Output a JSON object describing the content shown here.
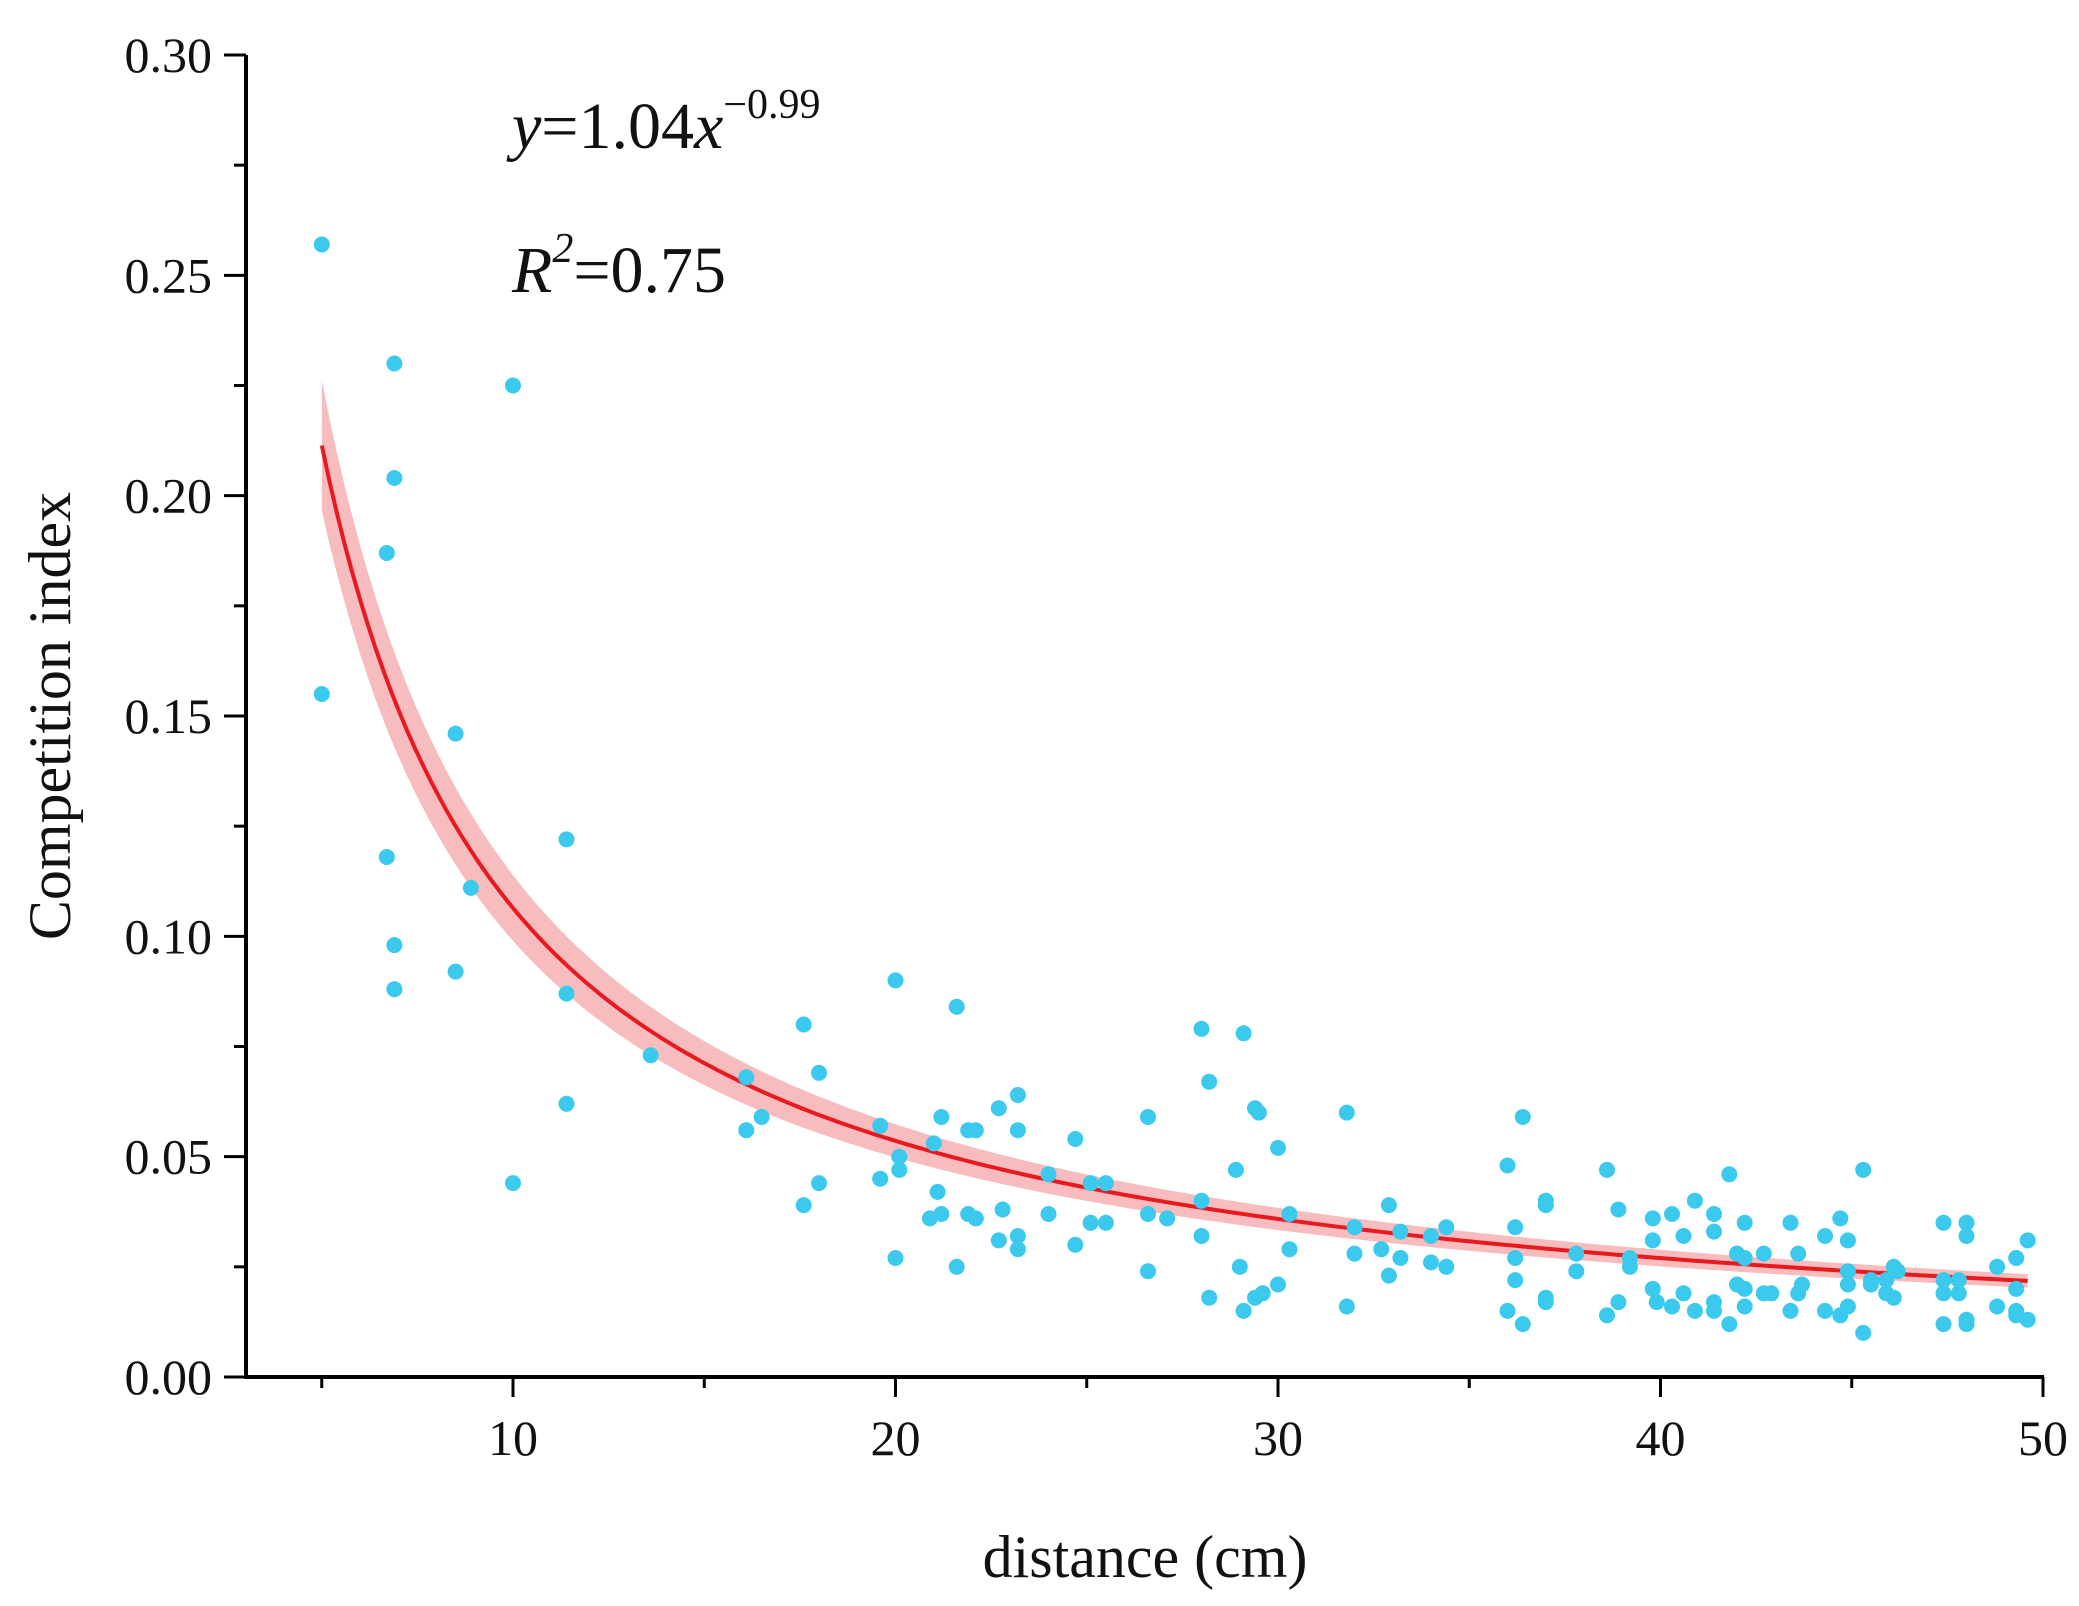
{
  "chart_data": {
    "type": "scatter",
    "title": "",
    "xlabel": "distance (cm)",
    "ylabel": "Competition index",
    "xlim": [
      3,
      50
    ],
    "ylim": [
      0,
      0.3
    ],
    "x_ticks": [
      10,
      20,
      30,
      40,
      50
    ],
    "x_tick_labels": [
      "10",
      "20",
      "30",
      "40",
      "50"
    ],
    "y_ticks": [
      0,
      0.05,
      0.1,
      0.15,
      0.2,
      0.25,
      0.3
    ],
    "y_tick_labels": [
      "0.00",
      "0.05",
      "0.10",
      "0.15",
      "0.20",
      "0.25",
      "0.30"
    ],
    "grid": false,
    "annotations": {
      "eq_y": "y",
      "eq_mid": "=1.04",
      "eq_x": "x",
      "eq_exp": "−0.99",
      "r2_r": "R",
      "r2_sup": "2",
      "r2_val": "=0.75"
    },
    "fit": {
      "type": "power",
      "a": 1.04,
      "b": -0.99,
      "x_range": [
        5,
        49.6
      ],
      "band_halfwidth_fraction": 0.07,
      "line_color": "#e8191f",
      "band_color": "#f4a5a8"
    },
    "point_color": "#3cc9ee",
    "points": [
      [
        5,
        0.257
      ],
      [
        5,
        0.155
      ],
      [
        6.7,
        0.187
      ],
      [
        6.7,
        0.118
      ],
      [
        6.9,
        0.23
      ],
      [
        6.9,
        0.204
      ],
      [
        6.9,
        0.098
      ],
      [
        6.9,
        0.088
      ],
      [
        8.5,
        0.146
      ],
      [
        8.5,
        0.092
      ],
      [
        8.9,
        0.111
      ],
      [
        10,
        0.225
      ],
      [
        10,
        0.044
      ],
      [
        11.4,
        0.122
      ],
      [
        11.4,
        0.087
      ],
      [
        11.4,
        0.062
      ],
      [
        13.6,
        0.073
      ],
      [
        16.1,
        0.068
      ],
      [
        16.1,
        0.056
      ],
      [
        16.5,
        0.059
      ],
      [
        17.6,
        0.08
      ],
      [
        17.6,
        0.039
      ],
      [
        18,
        0.069
      ],
      [
        18,
        0.044
      ],
      [
        19.6,
        0.057
      ],
      [
        19.6,
        0.045
      ],
      [
        20,
        0.09
      ],
      [
        20,
        0.027
      ],
      [
        20.1,
        0.05
      ],
      [
        20.1,
        0.047
      ],
      [
        20.9,
        0.036
      ],
      [
        21,
        0.053
      ],
      [
        21.1,
        0.042
      ],
      [
        21.2,
        0.059
      ],
      [
        21.2,
        0.037
      ],
      [
        21.6,
        0.084
      ],
      [
        21.6,
        0.025
      ],
      [
        21.9,
        0.056
      ],
      [
        21.9,
        0.037
      ],
      [
        22.1,
        0.056
      ],
      [
        22.1,
        0.036
      ],
      [
        22.7,
        0.061
      ],
      [
        22.7,
        0.031
      ],
      [
        22.8,
        0.038
      ],
      [
        23.2,
        0.064
      ],
      [
        23.2,
        0.056
      ],
      [
        23.2,
        0.032
      ],
      [
        23.2,
        0.029
      ],
      [
        24,
        0.046
      ],
      [
        24,
        0.037
      ],
      [
        24.7,
        0.054
      ],
      [
        24.7,
        0.03
      ],
      [
        25.1,
        0.044
      ],
      [
        25.1,
        0.035
      ],
      [
        25.5,
        0.044
      ],
      [
        25.5,
        0.035
      ],
      [
        26.6,
        0.059
      ],
      [
        26.6,
        0.037
      ],
      [
        26.6,
        0.024
      ],
      [
        27.1,
        0.036
      ],
      [
        28,
        0.079
      ],
      [
        28,
        0.04
      ],
      [
        28,
        0.032
      ],
      [
        28.2,
        0.067
      ],
      [
        28.2,
        0.018
      ],
      [
        28.9,
        0.047
      ],
      [
        29,
        0.025
      ],
      [
        29.1,
        0.078
      ],
      [
        29.1,
        0.015
      ],
      [
        29.4,
        0.061
      ],
      [
        29.5,
        0.06
      ],
      [
        29.4,
        0.018
      ],
      [
        29.6,
        0.019
      ],
      [
        30,
        0.052
      ],
      [
        30,
        0.021
      ],
      [
        30.3,
        0.037
      ],
      [
        30.3,
        0.029
      ],
      [
        31.8,
        0.06
      ],
      [
        31.8,
        0.016
      ],
      [
        32,
        0.034
      ],
      [
        32,
        0.028
      ],
      [
        32.7,
        0.029
      ],
      [
        32.9,
        0.039
      ],
      [
        32.9,
        0.023
      ],
      [
        33.2,
        0.033
      ],
      [
        33.2,
        0.027
      ],
      [
        34,
        0.032
      ],
      [
        34,
        0.026
      ],
      [
        34.4,
        0.034
      ],
      [
        34.4,
        0.025
      ],
      [
        36,
        0.048
      ],
      [
        36,
        0.015
      ],
      [
        36.2,
        0.034
      ],
      [
        36.2,
        0.027
      ],
      [
        36.2,
        0.022
      ],
      [
        36.4,
        0.059
      ],
      [
        36.4,
        0.012
      ],
      [
        37,
        0.04
      ],
      [
        37,
        0.039
      ],
      [
        37,
        0.018
      ],
      [
        37,
        0.017
      ],
      [
        37.8,
        0.028
      ],
      [
        37.8,
        0.024
      ],
      [
        38.6,
        0.047
      ],
      [
        38.6,
        0.014
      ],
      [
        38.9,
        0.038
      ],
      [
        38.9,
        0.017
      ],
      [
        39.2,
        0.027
      ],
      [
        39.2,
        0.025
      ],
      [
        39.8,
        0.036
      ],
      [
        39.8,
        0.031
      ],
      [
        39.8,
        0.02
      ],
      [
        39.9,
        0.017
      ],
      [
        40.3,
        0.037
      ],
      [
        40.3,
        0.016
      ],
      [
        40.6,
        0.032
      ],
      [
        40.6,
        0.019
      ],
      [
        40.9,
        0.04
      ],
      [
        40.9,
        0.015
      ],
      [
        41.4,
        0.037
      ],
      [
        41.4,
        0.033
      ],
      [
        41.4,
        0.017
      ],
      [
        41.4,
        0.015
      ],
      [
        41.8,
        0.046
      ],
      [
        41.8,
        0.012
      ],
      [
        42,
        0.028
      ],
      [
        42,
        0.021
      ],
      [
        42.2,
        0.035
      ],
      [
        42.2,
        0.027
      ],
      [
        42.2,
        0.02
      ],
      [
        42.2,
        0.016
      ],
      [
        42.7,
        0.028
      ],
      [
        42.7,
        0.019
      ],
      [
        42.9,
        0.019
      ],
      [
        43.4,
        0.035
      ],
      [
        43.4,
        0.015
      ],
      [
        43.6,
        0.028
      ],
      [
        43.6,
        0.019
      ],
      [
        43.7,
        0.021
      ],
      [
        44.3,
        0.032
      ],
      [
        44.3,
        0.015
      ],
      [
        44.7,
        0.036
      ],
      [
        44.7,
        0.014
      ],
      [
        44.9,
        0.031
      ],
      [
        44.9,
        0.021
      ],
      [
        44.9,
        0.024
      ],
      [
        44.9,
        0.016
      ],
      [
        45.3,
        0.047
      ],
      [
        45.3,
        0.01
      ],
      [
        45.5,
        0.021
      ],
      [
        45.5,
        0.022
      ],
      [
        45.9,
        0.022
      ],
      [
        45.9,
        0.019
      ],
      [
        46.1,
        0.025
      ],
      [
        46.1,
        0.018
      ],
      [
        46.2,
        0.024
      ],
      [
        47.4,
        0.035
      ],
      [
        47.4,
        0.022
      ],
      [
        47.4,
        0.019
      ],
      [
        47.4,
        0.012
      ],
      [
        47.8,
        0.022
      ],
      [
        47.8,
        0.019
      ],
      [
        48,
        0.035
      ],
      [
        48,
        0.032
      ],
      [
        48,
        0.013
      ],
      [
        48,
        0.012
      ],
      [
        48.8,
        0.025
      ],
      [
        48.8,
        0.016
      ],
      [
        49.3,
        0.027
      ],
      [
        49.3,
        0.02
      ],
      [
        49.3,
        0.015
      ],
      [
        49.3,
        0.014
      ],
      [
        49.6,
        0.031
      ],
      [
        49.6,
        0.013
      ]
    ]
  }
}
